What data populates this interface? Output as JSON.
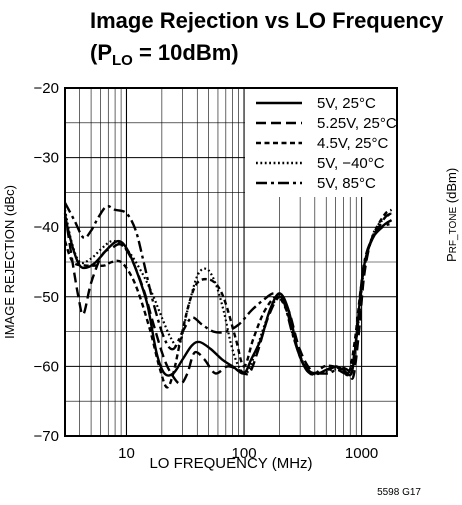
{
  "chart_data": {
    "type": "line",
    "title": "Image Rejection vs LO Frequency",
    "subtitle_prefix": "(P",
    "subtitle_sub": "LO",
    "subtitle_suffix": " = 10dBm)",
    "xlabel": "LO FREQUENCY (MHz)",
    "ylabel": "IMAGE REJECTION (dBc)",
    "x_scale": "log",
    "xlim": [
      3,
      2000
    ],
    "ylim": [
      -70,
      -20
    ],
    "x_ticks": [
      10,
      100,
      1000
    ],
    "x_tick_labels": [
      "10",
      "100",
      "1000"
    ],
    "y_ticks": [
      -70,
      -60,
      -50,
      -40,
      -30,
      -20
    ],
    "y_tick_labels": [
      "−70",
      "−60",
      "−50",
      "−40",
      "−30",
      "−20"
    ],
    "grid": true,
    "legend_position": "top-right",
    "figure_code": "5598 G17",
    "right_panel_ylabel_prefix": "P",
    "right_panel_ylabel_sub": "RF_TONE",
    "right_panel_ylabel_suffix": " (dBm)",
    "series": [
      {
        "name": "5V, 25°C",
        "dash": "solid",
        "points": [
          [
            3,
            -38.5
          ],
          [
            3.5,
            -43
          ],
          [
            4,
            -45.5
          ],
          [
            4.6,
            -45.8
          ],
          [
            5.5,
            -45
          ],
          [
            7,
            -43
          ],
          [
            8.5,
            -42
          ],
          [
            10,
            -43
          ],
          [
            12,
            -46
          ],
          [
            15,
            -51
          ],
          [
            18,
            -58
          ],
          [
            21,
            -61
          ],
          [
            25,
            -61
          ],
          [
            30,
            -59
          ],
          [
            36,
            -57
          ],
          [
            42,
            -56.5
          ],
          [
            52,
            -57.5
          ],
          [
            65,
            -59
          ],
          [
            80,
            -60
          ],
          [
            100,
            -61
          ],
          [
            115,
            -59
          ],
          [
            140,
            -56
          ],
          [
            165,
            -52
          ],
          [
            200,
            -49.5
          ],
          [
            240,
            -52
          ],
          [
            290,
            -58
          ],
          [
            350,
            -60.5
          ],
          [
            420,
            -61
          ],
          [
            500,
            -60.5
          ],
          [
            600,
            -60
          ],
          [
            700,
            -60.5
          ],
          [
            820,
            -61
          ],
          [
            900,
            -56
          ],
          [
            1000,
            -48
          ],
          [
            1100,
            -44
          ],
          [
            1300,
            -41
          ],
          [
            1600,
            -39.5
          ],
          [
            1800,
            -39
          ]
        ]
      },
      {
        "name": "5.25V, 25°C",
        "dash": "long",
        "points": [
          [
            3,
            -38
          ],
          [
            3.4,
            -44
          ],
          [
            3.9,
            -50
          ],
          [
            4.3,
            -52.5
          ],
          [
            5,
            -48
          ],
          [
            6.2,
            -44
          ],
          [
            7.5,
            -43
          ],
          [
            9,
            -42.5
          ],
          [
            11,
            -44.5
          ],
          [
            14,
            -49
          ],
          [
            17,
            -54
          ],
          [
            21,
            -59
          ],
          [
            25,
            -61.5
          ],
          [
            29,
            -62.5
          ],
          [
            33,
            -61
          ],
          [
            38,
            -58
          ],
          [
            46,
            -59
          ],
          [
            57,
            -61
          ],
          [
            72,
            -60
          ],
          [
            90,
            -60.5
          ],
          [
            110,
            -61
          ],
          [
            130,
            -58
          ],
          [
            160,
            -53
          ],
          [
            200,
            -50
          ],
          [
            240,
            -52
          ],
          [
            290,
            -57
          ],
          [
            350,
            -60
          ],
          [
            420,
            -61
          ],
          [
            520,
            -60.5
          ],
          [
            620,
            -60
          ],
          [
            760,
            -60.5
          ],
          [
            850,
            -61.5
          ],
          [
            950,
            -55
          ],
          [
            1050,
            -47
          ],
          [
            1200,
            -42
          ],
          [
            1400,
            -40
          ],
          [
            1600,
            -38.5
          ],
          [
            1800,
            -38
          ]
        ]
      },
      {
        "name": "4.5V, 25°C",
        "dash": "short",
        "points": [
          [
            3,
            -42
          ],
          [
            3.5,
            -45
          ],
          [
            4.5,
            -45.5
          ],
          [
            5.5,
            -45.5
          ],
          [
            6.5,
            -45.5
          ],
          [
            7.5,
            -45
          ],
          [
            9,
            -45
          ],
          [
            11,
            -47
          ],
          [
            13,
            -50
          ],
          [
            16,
            -55
          ],
          [
            19,
            -60
          ],
          [
            22,
            -63
          ],
          [
            25,
            -61
          ],
          [
            29,
            -56
          ],
          [
            34,
            -51
          ],
          [
            40,
            -48
          ],
          [
            50,
            -47.5
          ],
          [
            60,
            -48.5
          ],
          [
            70,
            -51
          ],
          [
            85,
            -56
          ],
          [
            100,
            -60
          ],
          [
            120,
            -56
          ],
          [
            150,
            -52
          ],
          [
            190,
            -50
          ],
          [
            230,
            -52
          ],
          [
            280,
            -57
          ],
          [
            340,
            -60.5
          ],
          [
            400,
            -61
          ],
          [
            480,
            -60
          ],
          [
            580,
            -60
          ],
          [
            680,
            -60.5
          ],
          [
            780,
            -61
          ],
          [
            880,
            -56
          ],
          [
            1000,
            -48
          ],
          [
            1150,
            -43
          ],
          [
            1350,
            -40
          ],
          [
            1600,
            -38
          ],
          [
            1800,
            -37.5
          ]
        ]
      },
      {
        "name": "5V, −40°C",
        "dash": "dotted",
        "points": [
          [
            3,
            -37.5
          ],
          [
            3.4,
            -42
          ],
          [
            4,
            -45
          ],
          [
            5,
            -44.5
          ],
          [
            6.2,
            -43
          ],
          [
            7.5,
            -42
          ],
          [
            9,
            -42.5
          ],
          [
            11,
            -44
          ],
          [
            14,
            -47
          ],
          [
            17,
            -50
          ],
          [
            20,
            -53
          ],
          [
            24,
            -56
          ],
          [
            28,
            -57
          ],
          [
            33,
            -52
          ],
          [
            40,
            -47
          ],
          [
            48,
            -46
          ],
          [
            57,
            -48
          ],
          [
            67,
            -52
          ],
          [
            78,
            -57
          ],
          [
            90,
            -60
          ],
          [
            105,
            -61
          ],
          [
            125,
            -58
          ],
          [
            150,
            -54
          ],
          [
            185,
            -50.5
          ],
          [
            220,
            -51
          ],
          [
            265,
            -56
          ],
          [
            320,
            -59.5
          ],
          [
            380,
            -61
          ],
          [
            450,
            -61
          ],
          [
            550,
            -60.5
          ],
          [
            650,
            -60.5
          ],
          [
            750,
            -61
          ],
          [
            850,
            -59
          ],
          [
            950,
            -53
          ],
          [
            1050,
            -46
          ],
          [
            1250,
            -41
          ],
          [
            1500,
            -39
          ],
          [
            1800,
            -38
          ]
        ]
      },
      {
        "name": "5V, 85°C",
        "dash": "dashdot",
        "points": [
          [
            3,
            -36.5
          ],
          [
            3.6,
            -39
          ],
          [
            4.3,
            -41.5
          ],
          [
            5,
            -40.5
          ],
          [
            5.8,
            -38.5
          ],
          [
            6.8,
            -37
          ],
          [
            8,
            -37.5
          ],
          [
            10,
            -38
          ],
          [
            12,
            -40.5
          ],
          [
            14,
            -45
          ],
          [
            17,
            -51
          ],
          [
            21,
            -56
          ],
          [
            25,
            -57.5
          ],
          [
            30,
            -55
          ],
          [
            36,
            -53
          ],
          [
            44,
            -54
          ],
          [
            55,
            -55
          ],
          [
            70,
            -55
          ],
          [
            90,
            -54
          ],
          [
            115,
            -52
          ],
          [
            145,
            -50.5
          ],
          [
            180,
            -49.5
          ],
          [
            215,
            -50.5
          ],
          [
            255,
            -55
          ],
          [
            305,
            -59
          ],
          [
            360,
            -61
          ],
          [
            430,
            -61
          ],
          [
            520,
            -61
          ],
          [
            620,
            -60.5
          ],
          [
            730,
            -61
          ],
          [
            830,
            -60
          ],
          [
            930,
            -54
          ],
          [
            1030,
            -46
          ],
          [
            1200,
            -42
          ],
          [
            1500,
            -40
          ],
          [
            1800,
            -39.5
          ]
        ]
      }
    ]
  }
}
